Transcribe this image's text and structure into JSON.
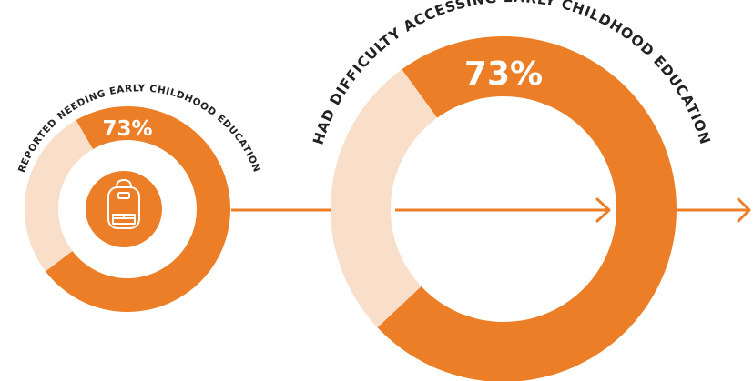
{
  "colors": {
    "accent": "#ec7e27",
    "accent_light": "#f9dfca",
    "background": "#ffffff",
    "icon_line": "#ffffff"
  },
  "icons": {
    "small_donut_center": "backpack-icon"
  },
  "chart_data": [
    {
      "type": "pie",
      "variant": "donut",
      "label": "REPORTED NEEDING EARLY CHILDHOOD EDUCATION",
      "value_label": "73%",
      "values": [
        73,
        27
      ],
      "value_colors": [
        "#ec7e27",
        "#f9dfca"
      ]
    },
    {
      "type": "pie",
      "variant": "donut",
      "label": "HAD DIFFICULTY ACCESSING EARLY CHILDHOOD EDUCATION",
      "value_label": "73%",
      "values": [
        73,
        27
      ],
      "value_colors": [
        "#ec7e27",
        "#f9dfca"
      ]
    }
  ]
}
